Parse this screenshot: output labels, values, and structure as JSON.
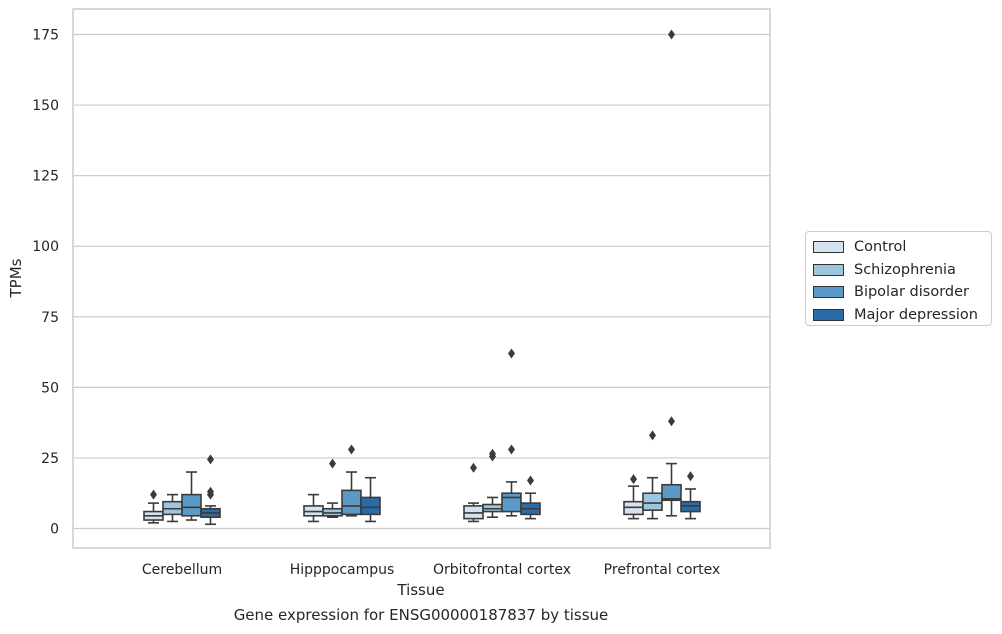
{
  "caption": "Gene expression for ENSG00000187837 by tissue",
  "chart_data": {
    "type": "box",
    "title": "",
    "xlabel": "Tissue",
    "ylabel": "TPMs",
    "ylim": [
      -7,
      184
    ],
    "yticks": [
      "0",
      "25",
      "50",
      "75",
      "100",
      "125",
      "150",
      "175"
    ],
    "grid": "horizontal",
    "legend_position": "right",
    "categories": [
      "Cerebellum",
      "Hipppocampus",
      "Orbitofrontal cortex",
      "Prefrontal cortex"
    ],
    "series": [
      {
        "name": "Control",
        "color": "#d5e3f0",
        "boxes": [
          {
            "whislo": 2,
            "q1": 3,
            "med": 4.5,
            "q3": 6,
            "whishi": 9,
            "fliers": [
              12
            ]
          },
          {
            "whislo": 2.5,
            "q1": 4.5,
            "med": 6,
            "q3": 8,
            "whishi": 12,
            "fliers": []
          },
          {
            "whislo": 2.5,
            "q1": 3.5,
            "med": 5.5,
            "q3": 8,
            "whishi": 9,
            "fliers": [
              21.5
            ]
          },
          {
            "whislo": 3.5,
            "q1": 5,
            "med": 7.5,
            "q3": 9.5,
            "whishi": 15,
            "fliers": [
              17.5
            ]
          }
        ]
      },
      {
        "name": "Schizophrenia",
        "color": "#9dc5de",
        "boxes": [
          {
            "whislo": 2.5,
            "q1": 5,
            "med": 7,
            "q3": 9.5,
            "whishi": 12,
            "fliers": []
          },
          {
            "whislo": 4,
            "q1": 4.5,
            "med": 5.5,
            "q3": 7,
            "whishi": 9,
            "fliers": [
              23
            ]
          },
          {
            "whislo": 4,
            "q1": 6,
            "med": 7,
            "q3": 8.5,
            "whishi": 11,
            "fliers": [
              25.5,
              26.5
            ]
          },
          {
            "whislo": 3.5,
            "q1": 6.5,
            "med": 9,
            "q3": 12.5,
            "whishi": 18,
            "fliers": [
              33
            ]
          }
        ]
      },
      {
        "name": "Bipolar disorder",
        "color": "#5b9ac6",
        "boxes": [
          {
            "whislo": 3,
            "q1": 4.5,
            "med": 7.5,
            "q3": 12,
            "whishi": 20,
            "fliers": []
          },
          {
            "whislo": 4.5,
            "q1": 5,
            "med": 8,
            "q3": 13.5,
            "whishi": 20,
            "fliers": [
              28
            ]
          },
          {
            "whislo": 4.5,
            "q1": 6,
            "med": 11,
            "q3": 12.5,
            "whishi": 16.5,
            "fliers": [
              28,
              62
            ]
          },
          {
            "whislo": 4.5,
            "q1": 10,
            "med": 10.5,
            "q3": 15.5,
            "whishi": 23,
            "fliers": [
              38,
              175
            ]
          }
        ]
      },
      {
        "name": "Major depression",
        "color": "#2b6ba6",
        "boxes": [
          {
            "whislo": 1.5,
            "q1": 4,
            "med": 5.5,
            "q3": 7,
            "whishi": 8,
            "fliers": [
              12,
              13,
              24.5
            ]
          },
          {
            "whislo": 2.5,
            "q1": 5,
            "med": 7.5,
            "q3": 11,
            "whishi": 18,
            "fliers": []
          },
          {
            "whislo": 3.5,
            "q1": 5,
            "med": 7,
            "q3": 9,
            "whishi": 12.5,
            "fliers": [
              17
            ]
          },
          {
            "whislo": 3.5,
            "q1": 6,
            "med": 8,
            "q3": 9.5,
            "whishi": 14,
            "fliers": [
              18.5
            ]
          }
        ]
      }
    ]
  }
}
